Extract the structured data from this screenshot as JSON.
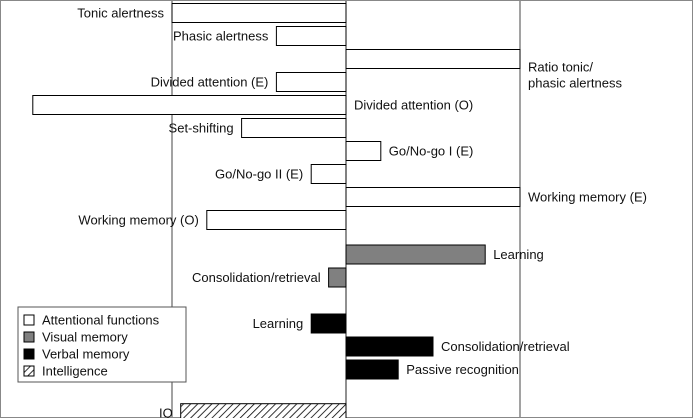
{
  "chart_data": {
    "type": "bar",
    "orientation": "horizontal",
    "title": "",
    "xlabel": "",
    "ylabel": "",
    "gridlines_at": [
      -1,
      1
    ],
    "xlim": [
      -1.8,
      1.98
    ],
    "legend": {
      "placement": "bottom-left",
      "entries": [
        {
          "label": "Attentional functions",
          "fill": "white"
        },
        {
          "label": "Visual memory",
          "fill": "gray"
        },
        {
          "label": "Verbal memory",
          "fill": "black"
        },
        {
          "label": "Intelligence",
          "fill": "hatch"
        }
      ]
    },
    "bars": [
      {
        "label": "Tonic alertness",
        "value": -1.0,
        "group": "Attentional functions",
        "row": 0,
        "label_side": "left"
      },
      {
        "label": "Phasic alertness",
        "value": -0.4,
        "group": "Attentional functions",
        "row": 1,
        "label_side": "left"
      },
      {
        "label": "Ratio tonic/\nphasic alertness",
        "value": 1.0,
        "group": "Attentional functions",
        "row": 2,
        "label_side": "right"
      },
      {
        "label": "Divided attention (E)",
        "value": -0.4,
        "group": "Attentional functions",
        "row": 3,
        "label_side": "left"
      },
      {
        "label": "Divided attention (O)",
        "value": -1.8,
        "group": "Attentional functions",
        "row": 4,
        "label_side": "right"
      },
      {
        "label": "Set-shifting",
        "value": -0.6,
        "group": "Attentional functions",
        "row": 5,
        "label_side": "left"
      },
      {
        "label": "Go/No-go I (E)",
        "value": 0.2,
        "group": "Attentional functions",
        "row": 6,
        "label_side": "right"
      },
      {
        "label": "Go/No-go II (E)",
        "value": -0.2,
        "group": "Attentional functions",
        "row": 7,
        "label_side": "left"
      },
      {
        "label": "Working memory (E)",
        "value": 1.0,
        "group": "Attentional functions",
        "row": 8,
        "label_side": "right"
      },
      {
        "label": "Working memory (O)",
        "value": -0.8,
        "group": "Attentional functions",
        "row": 9,
        "label_side": "left"
      },
      {
        "label": "Learning",
        "value": 0.8,
        "group": "Visual memory",
        "row": 10.5,
        "label_side": "right"
      },
      {
        "label": "Consolidation/retrieval",
        "value": -0.1,
        "group": "Visual memory",
        "row": 11.5,
        "label_side": "left"
      },
      {
        "label": "Learning",
        "value": -0.2,
        "group": "Verbal memory",
        "row": 13.5,
        "label_side": "left"
      },
      {
        "label": "Consolidation/retrieval",
        "value": 0.5,
        "group": "Verbal memory",
        "row": 14.5,
        "label_side": "right"
      },
      {
        "label": "Passive recognition",
        "value": 0.3,
        "group": "Verbal memory",
        "row": 15.5,
        "label_side": "right"
      },
      {
        "label": "IQ",
        "value": -0.95,
        "group": "Intelligence",
        "row": 17.4,
        "label_side": "left"
      }
    ]
  }
}
